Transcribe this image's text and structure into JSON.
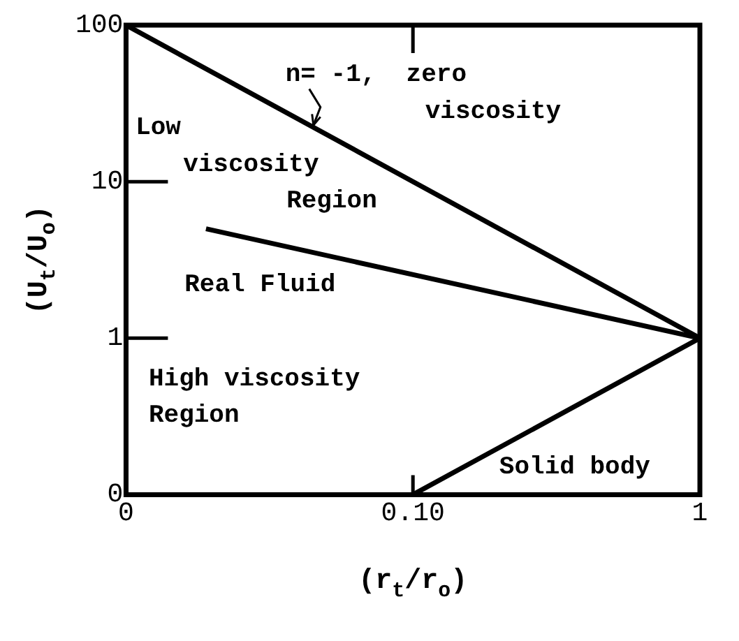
{
  "chart_data": {
    "type": "line",
    "xlabel": "(r$_{t}$/r$_{o}$)",
    "ylabel": "(U$_{t}$/U$_{o}$)",
    "log": "xy",
    "xlim": [
      0.01,
      1
    ],
    "xticks": [
      {
        "value": 0.01,
        "label": "0"
      },
      {
        "value": 0.1,
        "label": "0.10"
      },
      1
    ],
    "ylim": [
      0.1,
      100
    ],
    "yticks": [
      {
        "value": 0.1,
        "label": "0"
      },
      1,
      10,
      100
    ],
    "series": [
      {
        "color": "#000000",
        "x": [
          0.01,
          1
        ],
        "values": [
          100,
          1
        ]
      },
      {
        "name": "Real Fluid",
        "color": "#000000",
        "x": [
          0.019,
          1
        ],
        "values": [
          5,
          1
        ]
      },
      {
        "name": "Solid body",
        "color": "#000000",
        "x": [
          0.1,
          1
        ],
        "values": [
          0.1,
          1
        ]
      }
    ],
    "annotations": [
      {
        "text": "n= -1,  zero\nviscosity",
        "x": 0.045,
        "y": 22
      },
      "Low\nviscosity\nRegion",
      "High viscosity\nRegion"
    ],
    "marker": "none",
    "line_style": "solid",
    "grid": false,
    "legend": false
  }
}
